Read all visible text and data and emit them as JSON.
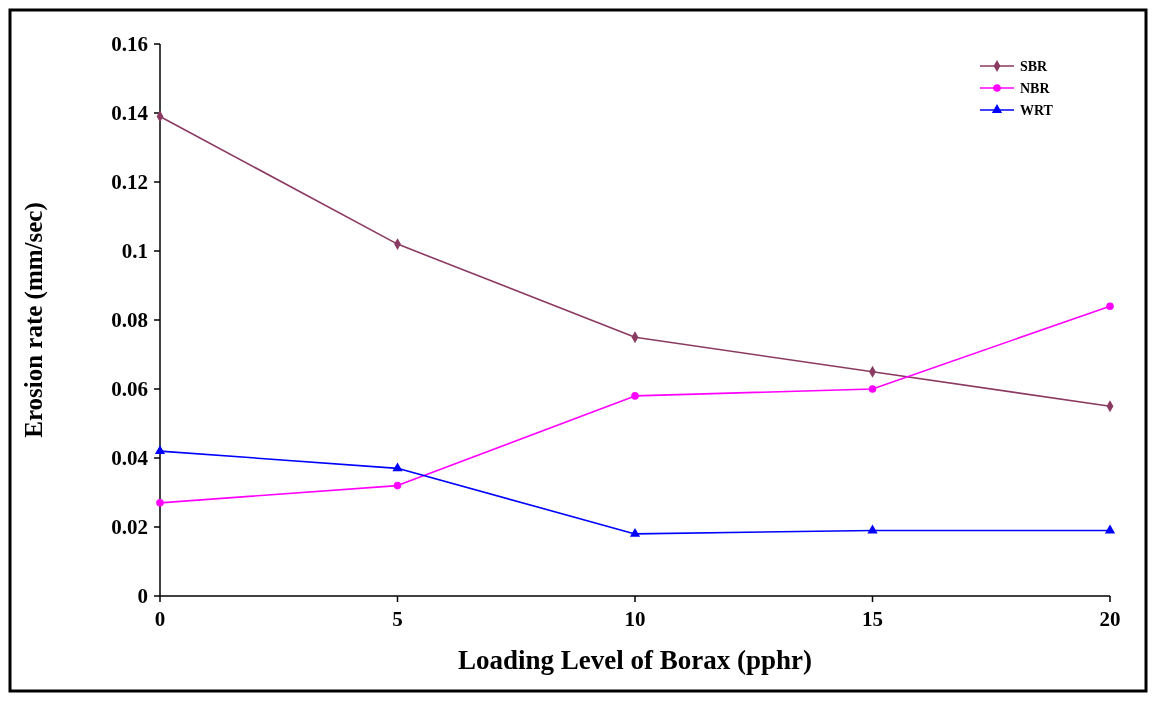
{
  "chart_data": {
    "type": "line",
    "xlabel": "Loading Level of Borax (pphr)",
    "ylabel": "Erosion rate (mm/sec)",
    "x": [
      0,
      5,
      10,
      15,
      20
    ],
    "xlim": [
      0,
      20
    ],
    "xticks": [
      0,
      5,
      10,
      15,
      20
    ],
    "ylim": [
      0,
      0.16
    ],
    "yticks": [
      0,
      0.02,
      0.04,
      0.06,
      0.08,
      {
        "value": 0.1,
        "label": "0.1"
      },
      0.12,
      0.14,
      0.16
    ],
    "legend": "top right",
    "grid": false,
    "series": [
      {
        "name": "SBR",
        "color": "#8b3a62",
        "marker": "diamond",
        "values": [
          0.139,
          0.102,
          0.075,
          0.065,
          0.055
        ]
      },
      {
        "name": "NBR",
        "color": "#ff00ff",
        "marker": "circle",
        "values": [
          0.027,
          0.032,
          0.058,
          0.06,
          0.084
        ]
      },
      {
        "name": "WRT",
        "color": "#0000ff",
        "marker": "triangle",
        "values": [
          0.042,
          0.037,
          0.018,
          0.019,
          0.019
        ]
      }
    ]
  }
}
